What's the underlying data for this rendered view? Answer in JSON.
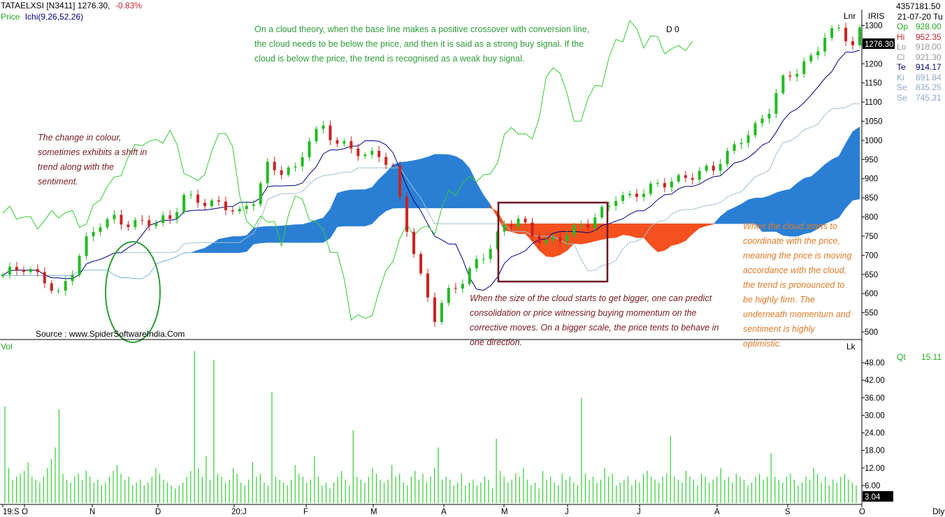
{
  "header": {
    "symbol": "TATAELXSI [N3411]",
    "last_price": "1276.30,",
    "change": "-0.83%",
    "legend_price": "Price",
    "legend_ichi": "Ichi(9,26,52,26)",
    "d_label": "D 0",
    "lnr": "Lnr",
    "iris": "IRIS",
    "vol_label": "Vol",
    "lk": "Lk",
    "dly": "Dly"
  },
  "right_panel": {
    "volume_total": "4357181.50",
    "date": "21-07-20 Tu",
    "rows": [
      {
        "label": "Op",
        "value": "928.00",
        "color": "#22aa22"
      },
      {
        "label": "Hi",
        "value": "952.35",
        "color": "#c0272d"
      },
      {
        "label": "Lo",
        "value": "918.00",
        "color": "#999999"
      },
      {
        "label": "Cl",
        "value": "921.30",
        "color": "#999999"
      },
      {
        "label": "Te",
        "value": "914.17",
        "color": "#000080"
      },
      {
        "label": "Ki",
        "value": "891.84",
        "color": "#8fa8c8"
      },
      {
        "label": "Se",
        "value": "835.25",
        "color": "#8fa8c8"
      },
      {
        "label": "Se",
        "value": "745.31",
        "color": "#8fa8c8"
      }
    ],
    "qt_label": "Qt",
    "qt_value": "15.11",
    "price_box": "1276.30",
    "vol_box": "3.04"
  },
  "annotations": {
    "top": "On a cloud theory, when the base line makes a positive crossover with conversion line, the cloud needs to be below the price, and then it is said as a strong buy signal. If the cloud is below the price, the trend is recognised as a weak buy signal.",
    "left": "The change in colour, sometimes exhibits a shift in trend along with the sentiment.",
    "middle": "When the size of the cloud starts to get bigger, one can predict consolidation or price witnessing buying momentum on the corrective moves. On a bigger scale, the price tents to behave in one direction.",
    "right": "When the cloud starts to coordinate with the price, meaning the price is moving accordance with the cloud, the trend is pronounced to be highly firm. The underneath momentum and sentiment is highly optimistic.",
    "source": "Source : www.SpiderSoftwareIndia.Com"
  },
  "chart_data": {
    "type": "candlestick",
    "price_axis": {
      "range": [
        480,
        1330
      ],
      "ticks": [
        "500",
        "550",
        "600",
        "650",
        "700",
        "750",
        "800",
        "850",
        "900",
        "950",
        "1000",
        "1050",
        "1100",
        "1150",
        "1200",
        "1250",
        "1300"
      ]
    },
    "volume_axis": {
      "range": [
        0,
        54
      ],
      "ticks": [
        "6.00",
        "12.00",
        "18.00",
        "24.00",
        "30.00",
        "36.00",
        "42.00",
        "48.00"
      ]
    },
    "x_ticks": [
      "19:S",
      "O",
      "N",
      "D",
      "20:J",
      "F",
      "M",
      "A",
      "M",
      "J",
      "J",
      "A",
      "S",
      "O"
    ],
    "colors": {
      "up": "#22bb22",
      "down": "#cc2222",
      "bullish_cloud": "#2a7fd4",
      "bearish_cloud": "#f4511e",
      "chikou": "#33cc33",
      "tenkan": "#000080",
      "kijun": "#9fc1d6",
      "volume": "#33cc33"
    },
    "close_path": [
      [
        0,
        650
      ],
      [
        3,
        660
      ],
      [
        6,
        640
      ],
      [
        8,
        605
      ],
      [
        10,
        660
      ],
      [
        12,
        730
      ],
      [
        14,
        780
      ],
      [
        16,
        800
      ],
      [
        18,
        790
      ],
      [
        20,
        785
      ],
      [
        22,
        780
      ],
      [
        24,
        790
      ],
      [
        26,
        860
      ],
      [
        28,
        850
      ],
      [
        30,
        835
      ],
      [
        32,
        820
      ],
      [
        34,
        805
      ],
      [
        36,
        850
      ],
      [
        38,
        940
      ],
      [
        40,
        920
      ],
      [
        42,
        915
      ],
      [
        44,
        1000
      ],
      [
        46,
        1040
      ],
      [
        48,
        1000
      ],
      [
        50,
        980
      ],
      [
        52,
        950
      ],
      [
        54,
        960
      ],
      [
        56,
        930
      ],
      [
        58,
        780
      ],
      [
        60,
        640
      ],
      [
        62,
        530
      ],
      [
        64,
        600
      ],
      [
        66,
        640
      ],
      [
        68,
        690
      ],
      [
        70,
        720
      ],
      [
        72,
        770
      ],
      [
        74,
        790
      ],
      [
        76,
        760
      ],
      [
        78,
        740
      ],
      [
        80,
        745
      ],
      [
        82,
        760
      ],
      [
        84,
        780
      ],
      [
        86,
        820
      ],
      [
        88,
        860
      ],
      [
        90,
        850
      ],
      [
        92,
        860
      ],
      [
        94,
        880
      ],
      [
        96,
        900
      ],
      [
        98,
        910
      ],
      [
        100,
        915
      ],
      [
        102,
        920
      ],
      [
        104,
        960
      ],
      [
        106,
        1010
      ],
      [
        108,
        1040
      ],
      [
        110,
        1080
      ],
      [
        112,
        1150
      ],
      [
        114,
        1180
      ],
      [
        116,
        1220
      ],
      [
        118,
        1280
      ],
      [
        120,
        1290
      ],
      [
        122,
        1240
      ],
      [
        123,
        1276
      ]
    ],
    "chikou_path": [
      [
        0,
        810
      ],
      [
        4,
        790
      ],
      [
        8,
        805
      ],
      [
        12,
        790
      ],
      [
        14,
        860
      ],
      [
        16,
        880
      ],
      [
        18,
        960
      ],
      [
        20,
        1010
      ],
      [
        22,
        980
      ],
      [
        24,
        1020
      ],
      [
        26,
        940
      ],
      [
        28,
        880
      ],
      [
        30,
        960
      ],
      [
        32,
        1040
      ],
      [
        33,
        990
      ],
      [
        34,
        850
      ],
      [
        36,
        760
      ],
      [
        38,
        800
      ],
      [
        39,
        790
      ],
      [
        40,
        720
      ],
      [
        41,
        830
      ],
      [
        42,
        850
      ],
      [
        44,
        800
      ],
      [
        46,
        760
      ],
      [
        48,
        710
      ],
      [
        50,
        540
      ],
      [
        52,
        520
      ],
      [
        54,
        610
      ],
      [
        56,
        700
      ],
      [
        58,
        760
      ],
      [
        60,
        770
      ],
      [
        62,
        780
      ],
      [
        64,
        850
      ],
      [
        66,
        880
      ],
      [
        68,
        920
      ],
      [
        70,
        900
      ],
      [
        72,
        1000
      ],
      [
        74,
        1040
      ],
      [
        76,
        1000
      ],
      [
        78,
        1150
      ],
      [
        80,
        1190
      ],
      [
        82,
        1050
      ],
      [
        84,
        1100
      ],
      [
        86,
        1150
      ],
      [
        88,
        1260
      ],
      [
        90,
        1310
      ],
      [
        92,
        1250
      ],
      [
        94,
        1260
      ],
      [
        96,
        1240
      ],
      [
        98,
        1250
      ],
      [
        99,
        1240
      ]
    ],
    "volume": [
      33,
      12,
      8,
      9,
      10,
      11,
      14,
      9,
      8,
      7,
      9,
      12,
      15,
      19,
      32,
      10,
      8,
      7,
      9,
      10,
      8,
      11,
      9,
      7,
      8,
      6,
      7,
      9,
      11,
      13,
      10,
      8,
      9,
      6,
      7,
      8,
      6,
      7,
      9,
      12,
      10,
      8,
      7,
      6,
      5,
      6,
      7,
      9,
      11,
      52,
      12,
      9,
      16,
      8,
      49,
      10,
      9,
      7,
      8,
      12,
      10,
      7,
      6,
      8,
      14,
      9,
      10,
      7,
      6,
      38,
      9,
      8,
      7,
      6,
      8,
      13,
      10,
      9,
      7,
      8,
      16,
      9,
      6,
      7,
      5,
      7,
      9,
      11,
      8,
      6,
      25,
      9,
      8,
      7,
      9,
      12,
      10,
      8,
      7,
      8,
      13,
      9,
      10,
      7,
      6,
      9,
      11,
      8,
      10,
      7,
      9,
      12,
      19,
      8,
      9,
      8,
      6,
      7,
      10,
      6,
      7,
      8,
      6,
      7,
      9,
      8,
      5,
      22,
      11,
      9,
      7,
      8,
      10,
      9,
      12,
      8,
      6,
      7,
      5,
      11,
      8,
      9,
      7,
      6,
      10,
      8,
      9,
      7,
      6,
      36,
      10,
      8,
      9,
      7,
      8,
      12,
      9,
      10,
      6,
      7,
      8,
      9,
      6,
      8,
      7,
      10,
      11,
      9,
      8,
      7,
      9,
      10,
      23,
      9,
      8,
      7,
      11,
      9,
      8,
      6,
      10,
      9,
      7,
      8,
      9,
      12,
      8,
      9,
      7,
      10,
      9,
      8,
      6,
      7,
      9,
      10,
      8,
      9,
      17,
      9,
      8,
      7,
      9,
      10,
      8,
      6,
      7,
      9,
      8,
      12,
      10,
      7,
      9,
      6,
      8,
      7,
      9,
      10,
      8,
      7,
      6
    ]
  }
}
